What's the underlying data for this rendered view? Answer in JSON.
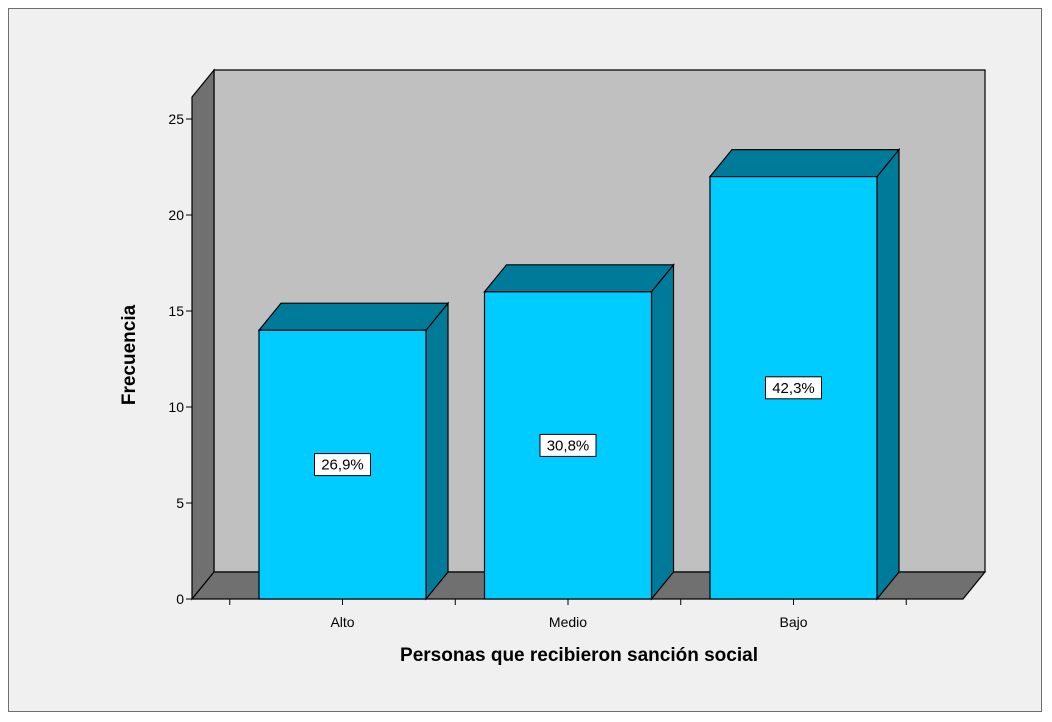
{
  "chart_data": {
    "type": "bar",
    "style": "3d-column",
    "categories": [
      "Alto",
      "Medio",
      "Bajo"
    ],
    "values": [
      14,
      16,
      22
    ],
    "data_labels": [
      "26,9%",
      "30,8%",
      "42,3%"
    ],
    "xlabel": "Personas que recibieron sanción social",
    "ylabel": "Frecuencia",
    "ylim": [
      0,
      25
    ],
    "yticks": [
      0,
      5,
      10,
      15,
      20,
      25
    ],
    "grid": false,
    "legend": "none",
    "colors": {
      "bar_front": "#00ccff",
      "bar_side": "#007a99",
      "bar_top": "#007a99",
      "wall_back": "#c0c0c0",
      "wall_side": "#707070",
      "floor": "#707070",
      "frame_bg": "#f0f0f0"
    }
  }
}
